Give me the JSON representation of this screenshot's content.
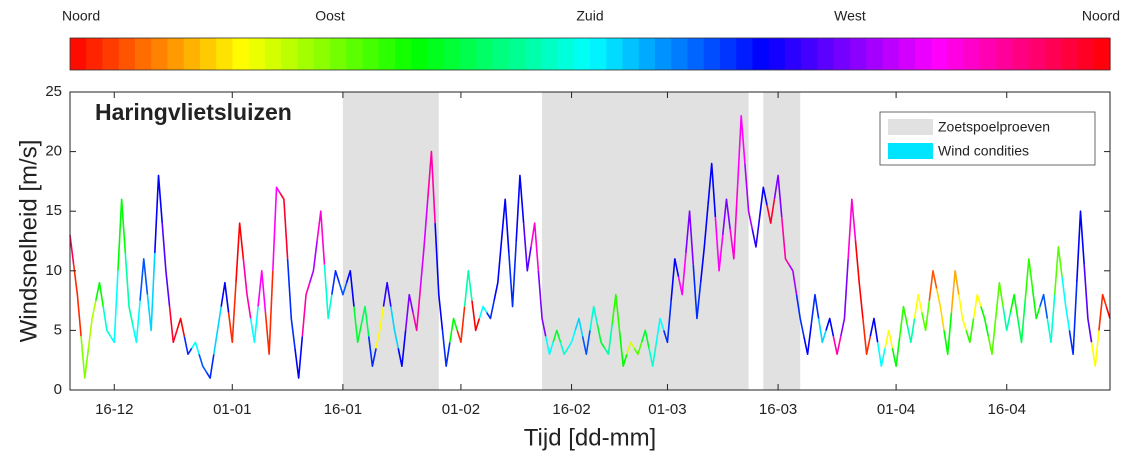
{
  "chart_data": {
    "type": "line",
    "title": "Haringvlietsluizen",
    "xlabel": "Tijd [dd-mm]",
    "ylabel": "Windsnelheid [m/s]",
    "xlim": [
      -6,
      135
    ],
    "xticks": [
      {
        "value": 0,
        "label": "16-12"
      },
      {
        "value": 16,
        "label": "01-01"
      },
      {
        "value": 31,
        "label": "16-01"
      },
      {
        "value": 47,
        "label": "01-02"
      },
      {
        "value": 62,
        "label": "16-02"
      },
      {
        "value": 75,
        "label": "01-03"
      },
      {
        "value": 90,
        "label": "16-03"
      },
      {
        "value": 106,
        "label": "01-04"
      },
      {
        "value": 121,
        "label": "16-04"
      }
    ],
    "ylim": [
      0,
      25
    ],
    "yticks": [
      0,
      5,
      10,
      15,
      20,
      25
    ],
    "grid": false,
    "legend": "upper right",
    "colorbar": {
      "colormap": "hsv",
      "lim": [
        0,
        360
      ],
      "ticks": [
        {
          "value": 0,
          "label": "Noord"
        },
        {
          "value": 90,
          "label": "Oost"
        },
        {
          "value": 180,
          "label": "Zuid"
        },
        {
          "value": 270,
          "label": "West"
        },
        {
          "value": 360,
          "label": "Noord"
        }
      ]
    },
    "shade": {
      "name": "Zoetspoelproeven",
      "color": "#e1e1e1",
      "periods": [
        [
          31,
          44
        ],
        [
          58,
          86
        ],
        [
          88,
          93
        ]
      ]
    },
    "x": [
      -6,
      -5,
      -4,
      -3,
      -2,
      -1,
      0,
      1,
      2,
      3,
      4,
      5,
      6,
      7,
      8,
      9,
      10,
      11,
      12,
      13,
      14,
      15,
      16,
      17,
      18,
      19,
      20,
      21,
      22,
      23,
      24,
      25,
      26,
      27,
      28,
      29,
      30,
      31,
      32,
      33,
      34,
      35,
      36,
      37,
      38,
      39,
      40,
      41,
      42,
      43,
      44,
      45,
      46,
      47,
      48,
      49,
      50,
      51,
      52,
      53,
      54,
      55,
      56,
      57,
      58,
      59,
      60,
      61,
      62,
      63,
      64,
      65,
      66,
      67,
      68,
      69,
      70,
      71,
      72,
      73,
      74,
      75,
      76,
      77,
      78,
      79,
      80,
      81,
      82,
      83,
      84,
      85,
      86,
      87,
      88,
      89,
      90,
      91,
      92,
      93,
      94,
      95,
      96,
      97,
      98,
      99,
      100,
      101,
      102,
      103,
      104,
      105,
      106,
      107,
      108,
      109,
      110,
      111,
      112,
      113,
      114,
      115,
      116,
      117,
      118,
      119,
      120,
      121,
      122,
      123,
      124,
      125,
      126,
      127,
      128,
      129,
      130,
      131,
      132,
      133,
      134,
      135
    ],
    "series": [
      {
        "name": "Wind condities",
        "color": "#00e5ff",
        "values": [
          13,
          8,
          1,
          6,
          9,
          5,
          4,
          16,
          7,
          4,
          11,
          5,
          18,
          10,
          4,
          6,
          3,
          4,
          2,
          1,
          5,
          9,
          4,
          14,
          8,
          4,
          10,
          3,
          17,
          16,
          6,
          1,
          8,
          10,
          15,
          6,
          10,
          8,
          10,
          4,
          7,
          2,
          5,
          9,
          5,
          2,
          8,
          5,
          12,
          20,
          8,
          2,
          6,
          4,
          10,
          5,
          7,
          6,
          9,
          16,
          7,
          18,
          10,
          14,
          6,
          3,
          5,
          3,
          4,
          6,
          3,
          7,
          4,
          3,
          8,
          2,
          4,
          3,
          5,
          2,
          6,
          4,
          11,
          8,
          15,
          6,
          12,
          19,
          10,
          16,
          11,
          23,
          15,
          12,
          17,
          14,
          18,
          11,
          10,
          6,
          3,
          8,
          4,
          6,
          3,
          6,
          16,
          9,
          3,
          6,
          2,
          5,
          2,
          7,
          4,
          8,
          5,
          10,
          7,
          3,
          10,
          6,
          4,
          8,
          6,
          3,
          9,
          5,
          8,
          4,
          11,
          6,
          8,
          4,
          12,
          7,
          3,
          15,
          6,
          2,
          8,
          6
        ],
        "directions": [
          340,
          10,
          90,
          80,
          120,
          170,
          180,
          120,
          160,
          180,
          220,
          190,
          240,
          260,
          350,
          0,
          230,
          180,
          220,
          230,
          190,
          240,
          10,
          0,
          320,
          180,
          300,
          10,
          300,
          350,
          230,
          240,
          320,
          280,
          310,
          170,
          230,
          220,
          240,
          130,
          140,
          230,
          60,
          250,
          190,
          240,
          270,
          320,
          290,
          320,
          240,
          230,
          120,
          10,
          160,
          0,
          180,
          230,
          240,
          240,
          230,
          240,
          260,
          310,
          270,
          180,
          130,
          170,
          180,
          190,
          220,
          170,
          130,
          160,
          110,
          120,
          70,
          100,
          130,
          170,
          180,
          230,
          240,
          300,
          270,
          230,
          240,
          240,
          300,
          270,
          310,
          300,
          280,
          250,
          240,
          350,
          270,
          320,
          280,
          230,
          240,
          230,
          190,
          240,
          320,
          270,
          310,
          0,
          10,
          240,
          180,
          60,
          120,
          110,
          160,
          60,
          100,
          20,
          50,
          120,
          40,
          60,
          110,
          60,
          120,
          100,
          100,
          160,
          120,
          140,
          110,
          120,
          220,
          170,
          100,
          180,
          230,
          240,
          260,
          60,
          10,
          0
        ]
      }
    ]
  }
}
